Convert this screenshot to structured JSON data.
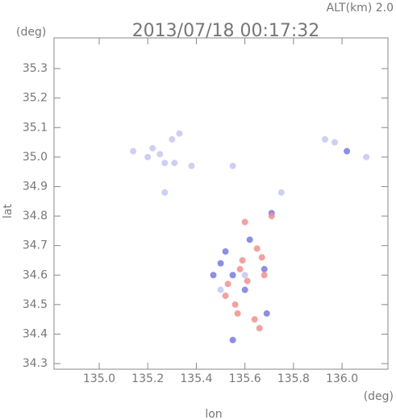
{
  "chart_data": {
    "type": "scatter",
    "title": "2013/07/18 00:17:32",
    "subtitle": "ALT(km) 2.0",
    "y_unit": "(deg)",
    "x_unit": "(deg)",
    "x_label": "lon",
    "y_label": "lat",
    "xlim": [
      134.814,
      136.189
    ],
    "ylim": [
      34.281,
      35.404
    ],
    "xticks": [
      {
        "value": 135.0,
        "label": "135.0"
      },
      {
        "value": 135.2,
        "label": "135.2"
      },
      {
        "value": 135.4,
        "label": "135.4"
      },
      {
        "value": 135.6,
        "label": "135.6"
      },
      {
        "value": 135.8,
        "label": "135.8"
      },
      {
        "value": 136.0,
        "label": "136.0"
      }
    ],
    "yticks": [
      {
        "value": 34.3,
        "label": "34.3"
      },
      34.4,
      34.5,
      34.6,
      34.7,
      34.8,
      34.9,
      {
        "value": 35.0,
        "label": "35.0"
      },
      35.1,
      35.2,
      35.3
    ],
    "series": [
      {
        "color": "#c4c8f2",
        "x": [
          135.14,
          135.2,
          135.22,
          135.25,
          135.27,
          135.3,
          135.33,
          135.31,
          135.27,
          135.38,
          135.93,
          135.97,
          136.1,
          135.55,
          135.75,
          135.6,
          135.5
        ],
        "y": [
          35.02,
          35.0,
          35.03,
          35.01,
          34.98,
          35.06,
          35.08,
          34.98,
          34.88,
          34.97,
          35.06,
          35.05,
          35.0,
          34.97,
          34.88,
          34.6,
          34.55
        ]
      },
      {
        "color": "#7a7ae0",
        "x": [
          135.52,
          135.55,
          135.6,
          135.68,
          135.5,
          135.62,
          135.69,
          135.55,
          136.02,
          135.71,
          135.47
        ],
        "y": [
          34.68,
          34.6,
          34.55,
          34.62,
          34.64,
          34.72,
          34.47,
          34.38,
          35.02,
          34.81,
          34.6
        ]
      },
      {
        "color": "#f09090",
        "x": [
          135.65,
          135.67,
          135.58,
          135.53,
          135.61,
          135.56,
          135.64,
          135.66,
          135.57,
          135.52,
          135.6,
          135.71,
          135.68,
          135.59
        ],
        "y": [
          34.69,
          34.66,
          34.62,
          34.57,
          34.58,
          34.5,
          34.45,
          34.42,
          34.47,
          34.53,
          34.78,
          34.8,
          34.6,
          34.65
        ]
      }
    ]
  }
}
